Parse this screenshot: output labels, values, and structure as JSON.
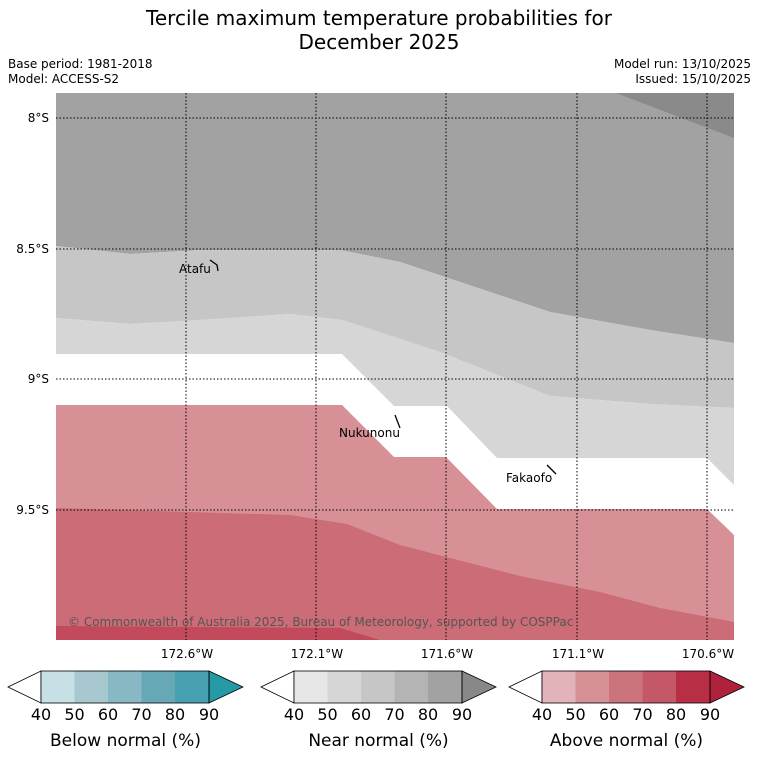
{
  "title": {
    "line1": "Tercile maximum temperature probabilities for",
    "line2": "December 2025"
  },
  "meta": {
    "base_period": "Base period: 1981-2018",
    "model": "Model: ACCESS-S2",
    "model_run": "Model run: 13/10/2025",
    "issued": "Issued: 15/10/2025"
  },
  "map": {
    "lat_labels": [
      "8°S",
      "8.5°S",
      "9°S",
      "9.5°S"
    ],
    "lon_labels": [
      "172.6°W",
      "172.1°W",
      "171.6°W",
      "171.1°W",
      "170.6°W"
    ],
    "places": [
      "Atafu",
      "Nukunonu",
      "Fakaofo"
    ],
    "copyright": "© Commonwealth of Australia 2025, Bureau of Meteorology, supported by COSPPac"
  },
  "legend": {
    "ticks": [
      "40",
      "50",
      "60",
      "70",
      "80",
      "90"
    ],
    "below": {
      "caption": "Below normal (%)",
      "colors": [
        "#ffffff",
        "#c6e0e6",
        "#a6c8ce",
        "#88b8c4",
        "#67a8b6",
        "#46a0b2",
        "#259aa6"
      ]
    },
    "near": {
      "caption": "Near normal (%)",
      "colors": [
        "#ffffff",
        "#e6e6e6",
        "#d6d6d6",
        "#c6c6c6",
        "#b4b4b4",
        "#a2a2a2",
        "#888888"
      ]
    },
    "above": {
      "caption": "Above normal (%)",
      "colors": [
        "#ffffff",
        "#e2b4ba",
        "#d69096",
        "#cc747c",
        "#c45868",
        "#b82e44",
        "#b0223c"
      ]
    }
  }
}
